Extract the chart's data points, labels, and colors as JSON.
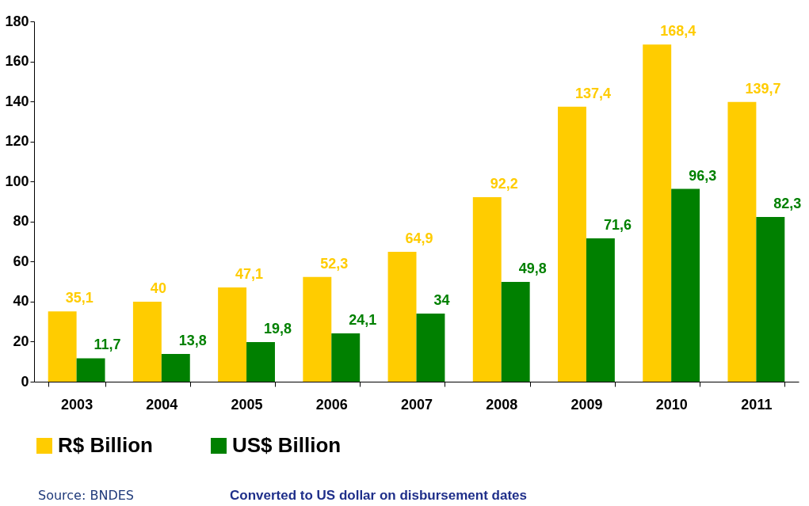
{
  "chart_data": {
    "type": "bar",
    "categories": [
      "2003",
      "2004",
      "2005",
      "2006",
      "2007",
      "2008",
      "2009",
      "2010",
      "2011"
    ],
    "series": [
      {
        "name": "R$ Billion",
        "color": "#ffcc00",
        "values": [
          35.1,
          40,
          47.1,
          52.3,
          64.9,
          92.2,
          137.4,
          168.4,
          139.7
        ],
        "value_labels": [
          "35,1",
          "40",
          "47,1",
          "52,3",
          "64,9",
          "92,2",
          "137,4",
          "168,4",
          "139,7"
        ]
      },
      {
        "name": "US$ Billion",
        "color": "#008000",
        "values": [
          11.7,
          13.8,
          19.8,
          24.1,
          34,
          49.8,
          71.6,
          96.3,
          82.3
        ],
        "value_labels": [
          "11,7",
          "13,8",
          "19,8",
          "24,1",
          "34",
          "49,8",
          "71,6",
          "96,3",
          "82,3"
        ]
      }
    ],
    "ylim": [
      0,
      180
    ],
    "yticks": [
      0,
      20,
      40,
      60,
      80,
      100,
      120,
      140,
      160,
      180
    ],
    "grid": false,
    "legend": "bottom",
    "annotations": [
      "Source: BNDES",
      "Converted to US dollar on disbursement dates"
    ]
  }
}
